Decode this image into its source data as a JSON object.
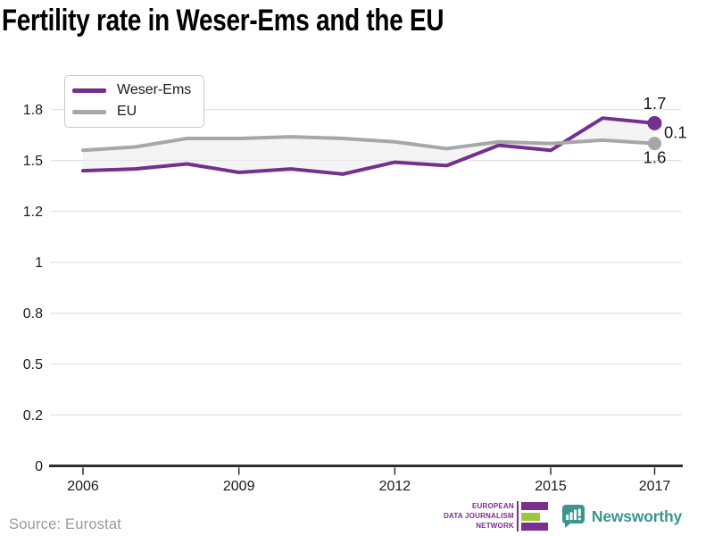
{
  "title": "Fertility rate in Weser-Ems and the EU",
  "source": "Source: Eurostat",
  "footer": {
    "edjn_lines": [
      "EUROPEAN",
      "DATA JOURNALISM",
      "NETWORK"
    ],
    "newsworthy": "Newsworthy"
  },
  "colors": {
    "weser_ems": "#74308F",
    "eu": "#A7A7A7",
    "area_fill": "#EBEBEB",
    "grid": "#DCDCDC",
    "axis": "#2E2E2E",
    "text": "#1A1A1A",
    "source_text": "#9A9A9A",
    "edjn_purple": "#7B2F8F",
    "edjn_green": "#9FC63B",
    "newsworthy_teal": "#3B968D"
  },
  "chart_data": {
    "type": "line",
    "x": [
      2006,
      2007,
      2008,
      2009,
      2010,
      2011,
      2012,
      2013,
      2014,
      2015,
      2016,
      2017
    ],
    "series": [
      {
        "name": "Weser-Ems",
        "color_key": "weser_ems",
        "values": [
          1.44,
          1.45,
          1.48,
          1.43,
          1.45,
          1.42,
          1.49,
          1.47,
          1.59,
          1.56,
          1.75,
          1.72
        ],
        "end_label": "1.7",
        "dot_radius": 8
      },
      {
        "name": "EU",
        "color_key": "eu",
        "values": [
          1.56,
          1.58,
          1.63,
          1.63,
          1.64,
          1.63,
          1.61,
          1.57,
          1.61,
          1.6,
          1.62,
          1.6
        ],
        "end_label": "1.6",
        "dot_radius": 7.5
      }
    ],
    "difference_label": "0.1",
    "y_ticks": [
      0,
      0.2,
      0.5,
      0.8,
      1,
      1.2,
      1.5,
      1.8
    ],
    "x_tick_labels": [
      2006,
      2009,
      2012,
      2015,
      2017
    ],
    "ylim": [
      0,
      1.8
    ],
    "grid": true,
    "legend_position": "top-left",
    "area_between_series": true
  }
}
